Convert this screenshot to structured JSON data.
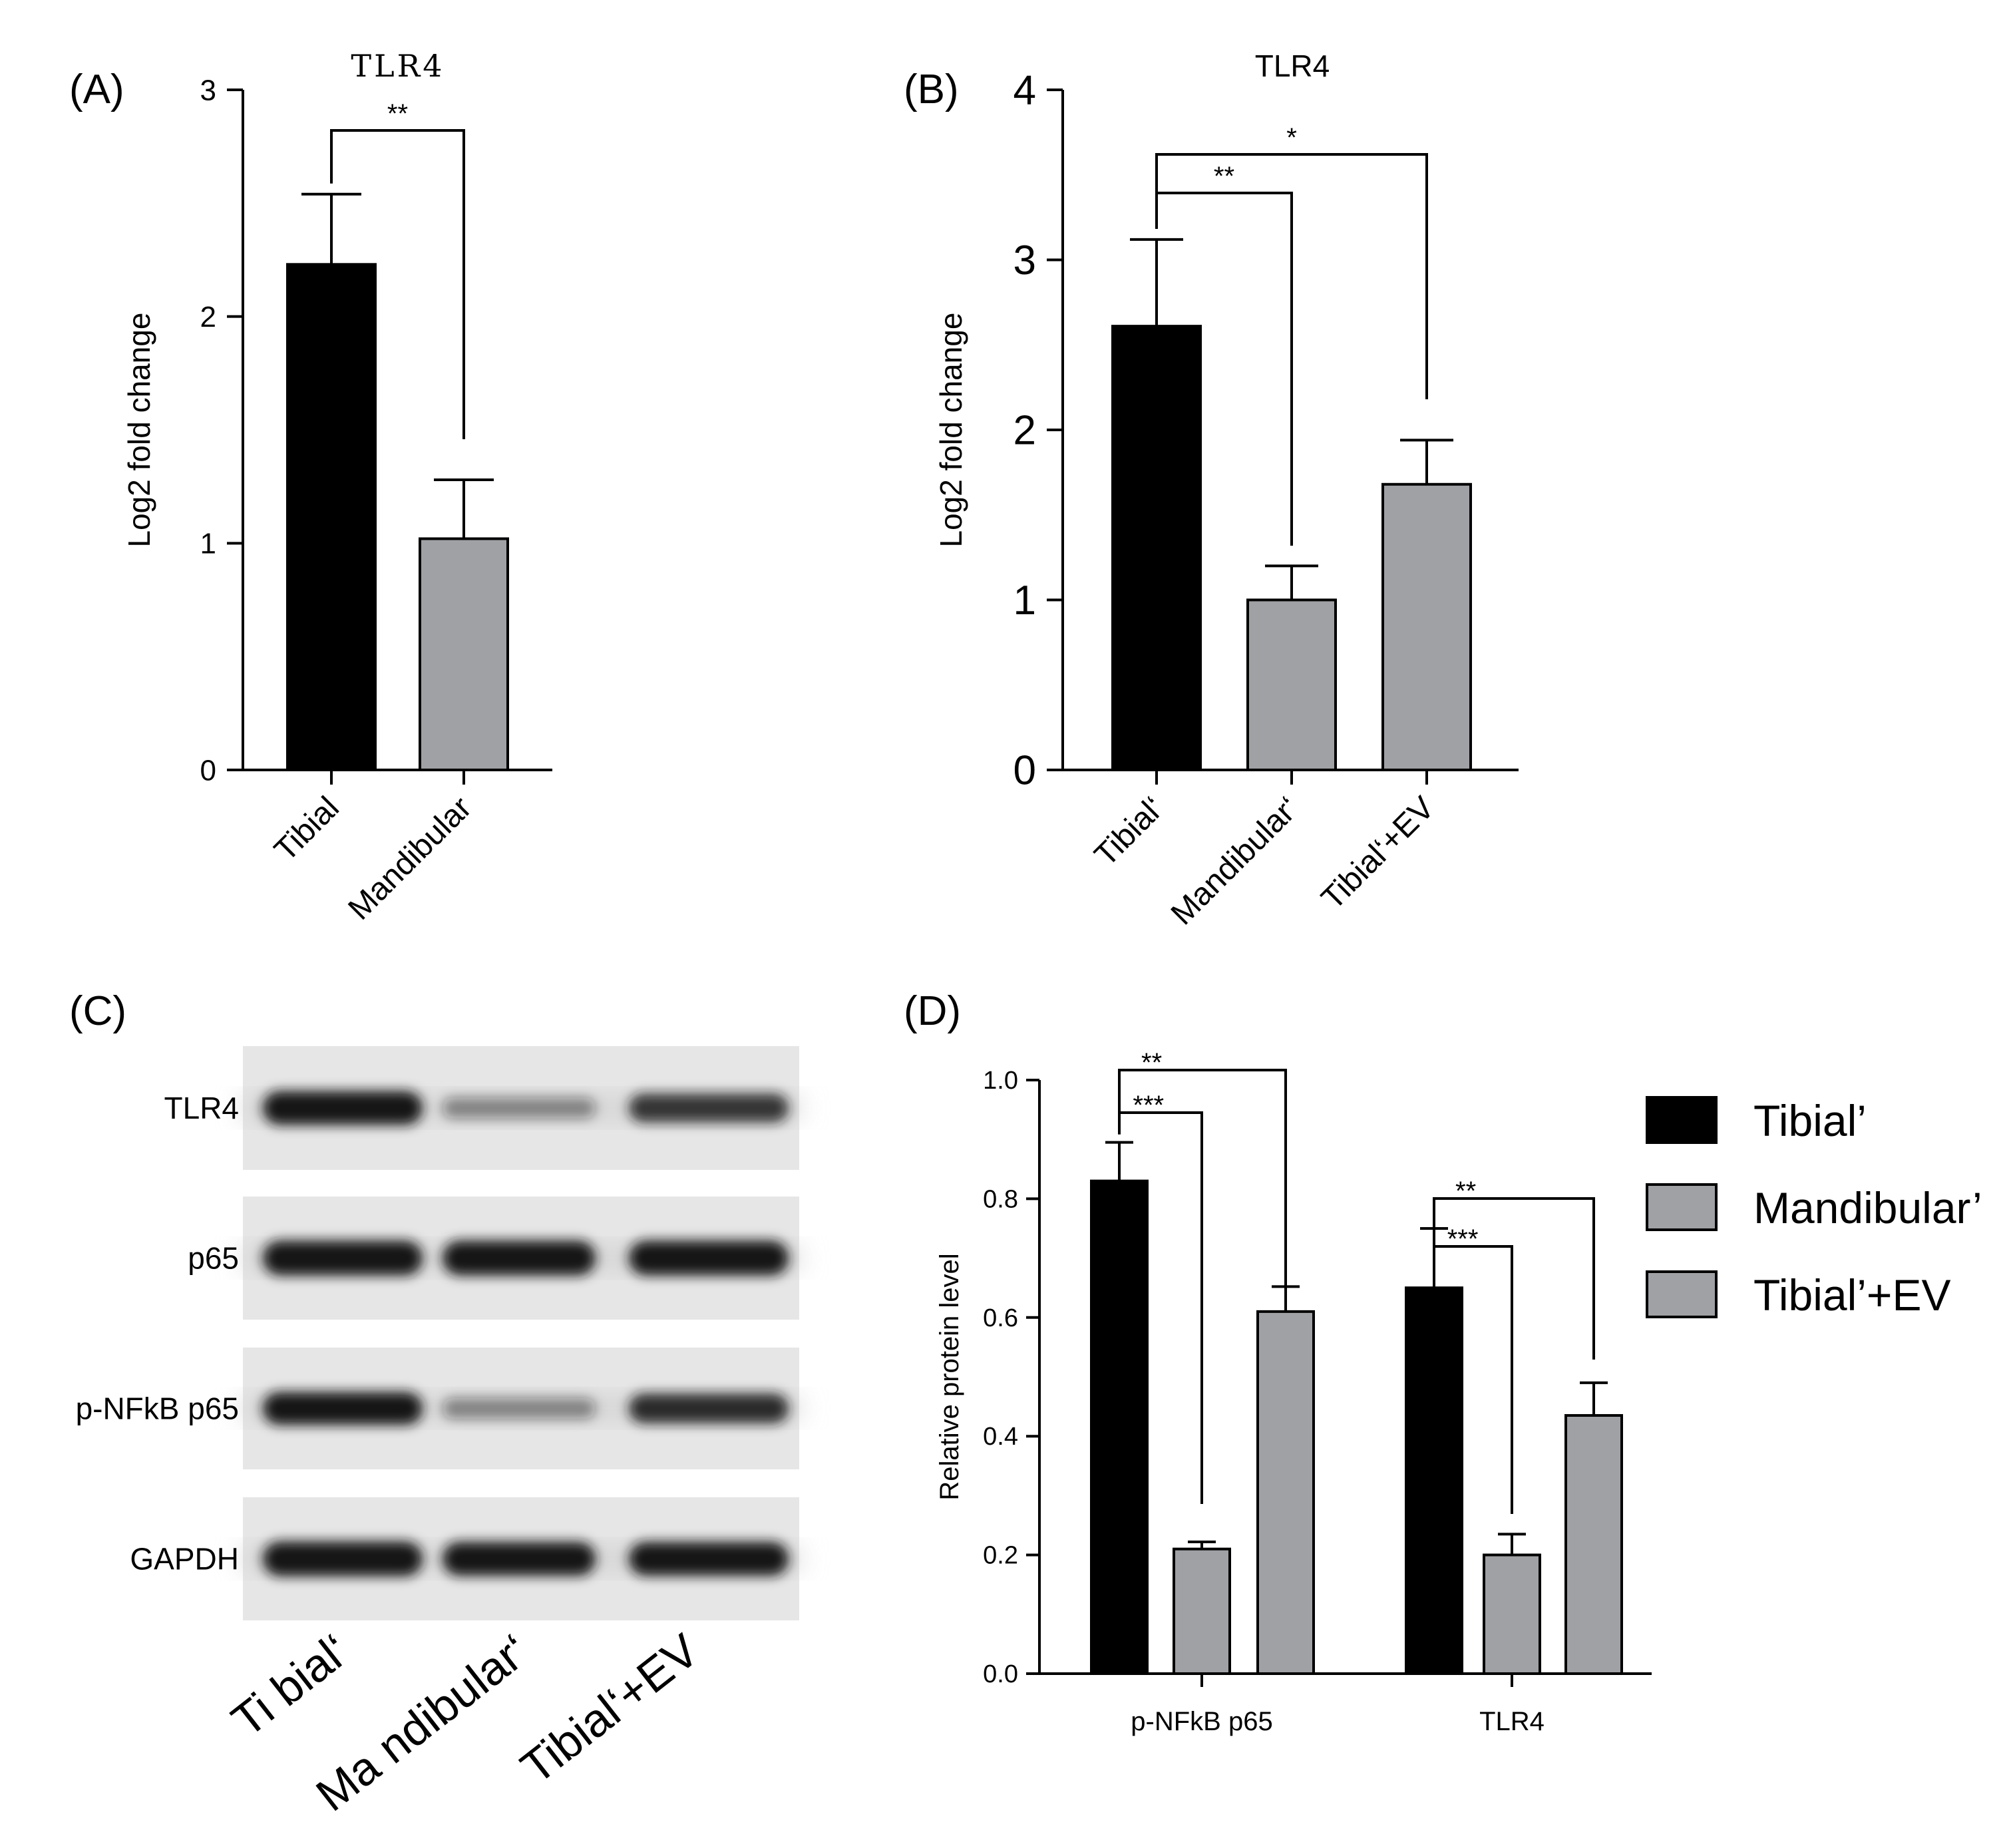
{
  "figure": {
    "panel_labels": [
      "(A)",
      "(B)",
      "(C)",
      "(D)"
    ]
  },
  "colors": {
    "black": "#000000",
    "grey": "#a0a1a5",
    "band": "#141414"
  },
  "chart_data": [
    {
      "panel": "(A)",
      "type": "bar",
      "title": "TLR4",
      "ylabel": "Log2 fold change",
      "xlabel": "",
      "ylim": [
        0,
        3
      ],
      "yticks": [
        "0",
        "1",
        "2",
        "3"
      ],
      "categories": [
        "Tibial",
        "Mandibular"
      ],
      "values": [
        2.23,
        1.02
      ],
      "errors": [
        0.31,
        0.26
      ],
      "bar_colors": [
        "#000000",
        "#a0a1a5"
      ],
      "significance": [
        {
          "from": 0,
          "to": 1,
          "label": "**"
        }
      ]
    },
    {
      "panel": "(B)",
      "type": "bar",
      "title": "TLR4",
      "ylabel": "Log2 fold change",
      "xlabel": "",
      "ylim": [
        0,
        4
      ],
      "yticks": [
        "0",
        "1",
        "2",
        "3",
        "4"
      ],
      "categories": [
        "Tibial‘",
        "Mandibular‘",
        "Tibial‘+EV"
      ],
      "values": [
        2.61,
        1.0,
        1.68
      ],
      "errors": [
        0.51,
        0.2,
        0.26
      ],
      "bar_colors": [
        "#000000",
        "#a0a1a5",
        "#a0a1a5"
      ],
      "significance": [
        {
          "from": 0,
          "to": 1,
          "label": "**"
        },
        {
          "from": 0,
          "to": 2,
          "label": "*"
        }
      ]
    },
    {
      "panel": "(D)",
      "type": "bar",
      "title": "",
      "ylabel": "Relative protein level",
      "xlabel": "",
      "ylim": [
        0,
        1.0
      ],
      "yticks": [
        "0.0",
        "0.2",
        "0.4",
        "0.6",
        "0.8",
        "1.0"
      ],
      "categories": [
        "p-NFkB p65",
        "TLR4"
      ],
      "series": [
        {
          "name": "Tibial’",
          "color": "#000000",
          "values": [
            0.83,
            0.65
          ],
          "errors": [
            0.065,
            0.1
          ]
        },
        {
          "name": "Mandibular’",
          "color": "#a0a1a5",
          "values": [
            0.21,
            0.2
          ],
          "errors": [
            0.012,
            0.035
          ]
        },
        {
          "name": "Tibial’+EV",
          "color": "#a0a1a5",
          "values": [
            0.61,
            0.435
          ],
          "errors": [
            0.042,
            0.055
          ]
        }
      ],
      "legend_position": "right",
      "significance": [
        {
          "group": 0,
          "from": 0,
          "to": 1,
          "label": "***"
        },
        {
          "group": 0,
          "from": 0,
          "to": 2,
          "label": "**"
        },
        {
          "group": 1,
          "from": 0,
          "to": 1,
          "label": "***"
        },
        {
          "group": 1,
          "from": 0,
          "to": 2,
          "label": "**"
        }
      ]
    }
  ],
  "western_blot": {
    "panel": "(C)",
    "rows": [
      {
        "label": "TLR4",
        "intensity": [
          0.95,
          0.3,
          0.7
        ]
      },
      {
        "label": "p65",
        "intensity": [
          1.0,
          1.0,
          1.0
        ]
      },
      {
        "label": "p-NFkB p65",
        "intensity": [
          0.9,
          0.3,
          0.75
        ]
      },
      {
        "label": "GAPDH",
        "intensity": [
          1.0,
          0.95,
          0.95
        ]
      }
    ],
    "lanes": [
      "Ti bial‘",
      "Ma ndibular‘",
      "Tibial‘+EV"
    ]
  }
}
